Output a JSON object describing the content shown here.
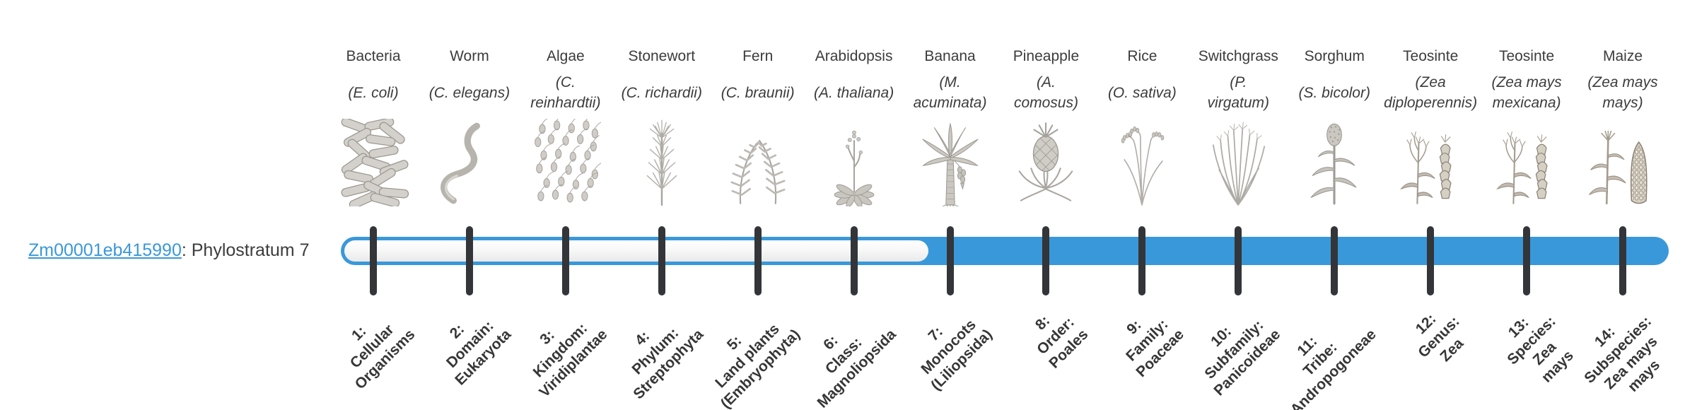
{
  "gene": {
    "id": "Zm00001eb415990",
    "suffix": ": Phylostratum 7",
    "phylostratum": 7
  },
  "colors": {
    "bar_blue": "#3998da",
    "tick": "#333538",
    "link_blue": "#3998da",
    "text": "#3c3c3c"
  },
  "timeline": {
    "total_strata": 14,
    "filled_from_stratum": 7,
    "filled_to_stratum": 14
  },
  "strata": [
    {
      "number": 1,
      "organism": "Bacteria",
      "species_lines": [
        "(E. coli)"
      ],
      "rank_lines": [
        "1:",
        "Cellular",
        "Organisms"
      ],
      "icon": "bacteria",
      "filled": false
    },
    {
      "number": 2,
      "organism": "Worm",
      "species_lines": [
        "(C. elegans)"
      ],
      "rank_lines": [
        "2:",
        "Domain:",
        "Eukaryota"
      ],
      "icon": "worm",
      "filled": false
    },
    {
      "number": 3,
      "organism": "Algae",
      "species_lines": [
        "(C.",
        "reinhardtii)"
      ],
      "rank_lines": [
        "3:",
        "Kingdom:",
        "Viridiplantae"
      ],
      "icon": "algae",
      "filled": false
    },
    {
      "number": 4,
      "organism": "Stonewort",
      "species_lines": [
        "(C. richardii)"
      ],
      "rank_lines": [
        "4:",
        "Phylum:",
        "Streptophyta"
      ],
      "icon": "stonewort",
      "filled": false
    },
    {
      "number": 5,
      "organism": "Fern",
      "species_lines": [
        "(C. braunii)"
      ],
      "rank_lines": [
        "5:",
        "Land plants",
        "(Embryophyta)"
      ],
      "icon": "fern",
      "filled": false
    },
    {
      "number": 6,
      "organism": "Arabidopsis",
      "species_lines": [
        "(A. thaliana)"
      ],
      "rank_lines": [
        "6:",
        "Class:",
        "Magnoliopsida"
      ],
      "icon": "arabidopsis",
      "filled": false
    },
    {
      "number": 7,
      "organism": "Banana",
      "species_lines": [
        "(M.",
        "acuminata)"
      ],
      "rank_lines": [
        "7:",
        "Monocots",
        "(Liliopsida)"
      ],
      "icon": "banana",
      "filled": true
    },
    {
      "number": 8,
      "organism": "Pineapple",
      "species_lines": [
        "(A.",
        "comosus)"
      ],
      "rank_lines": [
        "8:",
        "Order:",
        "Poales"
      ],
      "icon": "pineapple",
      "filled": true
    },
    {
      "number": 9,
      "organism": "Rice",
      "species_lines": [
        "(O. sativa)"
      ],
      "rank_lines": [
        "9:",
        "Family:",
        "Poaceae"
      ],
      "icon": "rice",
      "filled": true
    },
    {
      "number": 10,
      "organism": "Switchgrass",
      "species_lines": [
        "(P.",
        "virgatum)"
      ],
      "rank_lines": [
        "10:",
        "Subfamily:",
        "Panicoideae"
      ],
      "icon": "switchgrass",
      "filled": true
    },
    {
      "number": 11,
      "organism": "Sorghum",
      "species_lines": [
        "(S. bicolor)"
      ],
      "rank_lines": [
        "11:",
        "Tribe:",
        "Andropogoneae"
      ],
      "icon": "sorghum",
      "filled": true
    },
    {
      "number": 12,
      "organism": "Teosinte",
      "species_lines": [
        "(Zea",
        "diploperennis)"
      ],
      "rank_lines": [
        "12:",
        "Genus:",
        "Zea"
      ],
      "icon": "teosinte",
      "filled": true
    },
    {
      "number": 13,
      "organism": "Teosinte",
      "species_lines": [
        "(Zea mays",
        "mexicana)"
      ],
      "rank_lines": [
        "13:",
        "Species:",
        "Zea",
        "mays"
      ],
      "icon": "teosinte",
      "filled": true
    },
    {
      "number": 14,
      "organism": "Maize",
      "species_lines": [
        "(Zea mays",
        "mays)"
      ],
      "rank_lines": [
        "14:",
        "Subspecies:",
        "Zea mays",
        "mays"
      ],
      "icon": "maize",
      "filled": true
    }
  ]
}
